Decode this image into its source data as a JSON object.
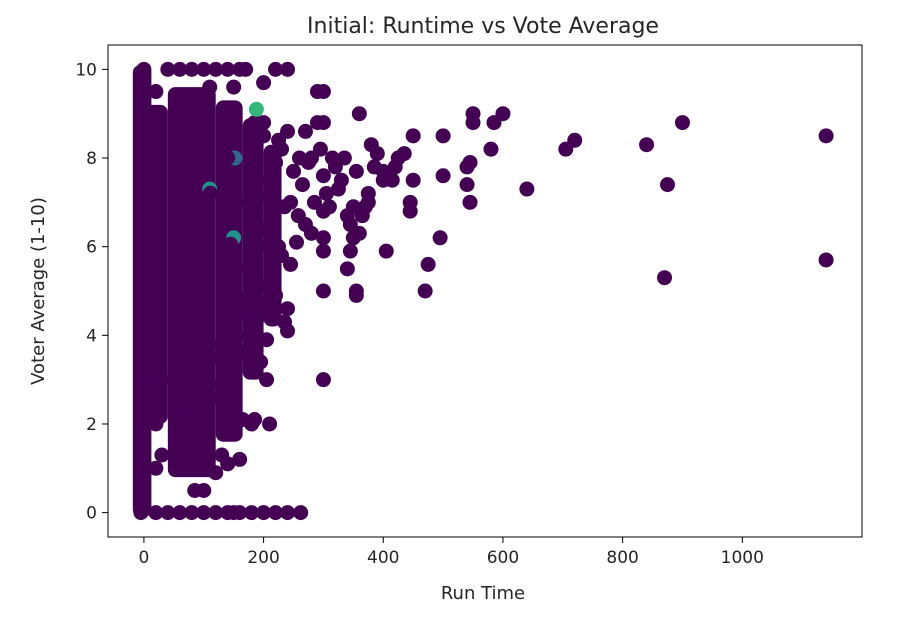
{
  "chart_data": {
    "type": "scatter",
    "title": "Initial: Runtime vs Vote Average",
    "xlabel": "Run Time",
    "ylabel": "Voter Average (1-10)",
    "xlim": [
      -60,
      1200
    ],
    "ylim": [
      -0.55,
      10.55
    ],
    "xticks": [
      0,
      200,
      400,
      600,
      800,
      1000
    ],
    "yticks": [
      0,
      2,
      4,
      6,
      8,
      10
    ],
    "xtick_labels": [
      "0",
      "200",
      "400",
      "600",
      "800",
      "1000"
    ],
    "ytick_labels": [
      "0",
      "2",
      "4",
      "6",
      "8",
      "10"
    ],
    "grid": false,
    "legend": "none",
    "colors": {
      "primary": "#440154",
      "highlight": [
        "#35b779",
        "#31688e",
        "#21918c"
      ]
    },
    "series": [
      {
        "points": [
          [
            1140,
            8.5
          ],
          [
            1140,
            5.7
          ],
          [
            900,
            8.8
          ],
          [
            875,
            7.4
          ],
          [
            870,
            5.3
          ],
          [
            840,
            8.3
          ],
          [
            720,
            8.4
          ],
          [
            705,
            8.2
          ],
          [
            640,
            7.3
          ],
          [
            600,
            9.0
          ],
          [
            585,
            8.8
          ],
          [
            580,
            8.2
          ],
          [
            550,
            9.0
          ],
          [
            550,
            8.8
          ],
          [
            545,
            7.9
          ],
          [
            540,
            7.8
          ],
          [
            540,
            7.4
          ],
          [
            545,
            7.0
          ],
          [
            500,
            8.5
          ],
          [
            500,
            7.6
          ],
          [
            495,
            6.2
          ],
          [
            475,
            5.6
          ],
          [
            470,
            5.0
          ],
          [
            450,
            8.5
          ],
          [
            450,
            7.5
          ],
          [
            445,
            7.0
          ],
          [
            445,
            6.8
          ],
          [
            435,
            8.1
          ],
          [
            425,
            8.0
          ],
          [
            420,
            7.8
          ],
          [
            415,
            7.5
          ],
          [
            405,
            5.9
          ],
          [
            400,
            7.7
          ],
          [
            400,
            7.5
          ],
          [
            390,
            8.1
          ],
          [
            385,
            7.8
          ],
          [
            380,
            8.3
          ],
          [
            375,
            7.2
          ],
          [
            375,
            7.0
          ],
          [
            370,
            6.9
          ],
          [
            365,
            6.7
          ],
          [
            360,
            9.0
          ],
          [
            360,
            6.3
          ],
          [
            355,
            7.7
          ],
          [
            355,
            5.0
          ],
          [
            355,
            4.9
          ],
          [
            350,
            6.9
          ],
          [
            350,
            6.2
          ],
          [
            345,
            6.5
          ],
          [
            345,
            5.9
          ],
          [
            340,
            6.7
          ],
          [
            340,
            5.5
          ],
          [
            335,
            8.0
          ],
          [
            330,
            7.5
          ],
          [
            325,
            7.3
          ],
          [
            320,
            7.8
          ],
          [
            315,
            8.0
          ],
          [
            310,
            6.9
          ],
          [
            305,
            7.2
          ],
          [
            300,
            9.5
          ],
          [
            300,
            8.8
          ],
          [
            300,
            7.6
          ],
          [
            300,
            6.8
          ],
          [
            300,
            6.2
          ],
          [
            300,
            5.9
          ],
          [
            300,
            5.0
          ],
          [
            300,
            3.0
          ],
          [
            295,
            8.2
          ],
          [
            290,
            9.5
          ],
          [
            290,
            8.8
          ],
          [
            285,
            7.0
          ],
          [
            280,
            8.0
          ],
          [
            280,
            6.3
          ],
          [
            275,
            7.9
          ],
          [
            270,
            8.6
          ],
          [
            270,
            6.5
          ],
          [
            265,
            7.4
          ],
          [
            262,
            0.0
          ],
          [
            260,
            8.0
          ],
          [
            258,
            6.7
          ],
          [
            255,
            6.1
          ],
          [
            250,
            7.7
          ],
          [
            245,
            7.0
          ],
          [
            245,
            5.6
          ],
          [
            240,
            8.6
          ],
          [
            240,
            10.0
          ],
          [
            240,
            4.6
          ],
          [
            240,
            4.1
          ],
          [
            235,
            6.9
          ],
          [
            230,
            8.2
          ],
          [
            225,
            6.0
          ],
          [
            220,
            10.0
          ],
          [
            220,
            7.9
          ],
          [
            215,
            5.2
          ],
          [
            210,
            2.0
          ],
          [
            205,
            3.0
          ],
          [
            200,
            8.5
          ],
          [
            200,
            6.4
          ],
          [
            195,
            3.4
          ],
          [
            190,
            4.4
          ],
          [
            185,
            2.1
          ],
          [
            180,
            2.0
          ],
          [
            175,
            7.0
          ],
          [
            165,
            2.1
          ],
          [
            160,
            1.2
          ],
          [
            150,
            0.0
          ],
          [
            140,
            1.1
          ],
          [
            130,
            1.3
          ],
          [
            120,
            0.9
          ],
          [
            100,
            0.5
          ],
          [
            85,
            0.5
          ],
          [
            30,
            1.3
          ],
          [
            -5,
            0.5
          ],
          [
            -5,
            0.0
          ],
          [
            0,
            2.0
          ],
          [
            0,
            3.0
          ],
          [
            0,
            1.0
          ],
          [
            0,
            4.0
          ],
          [
            0,
            5.0
          ],
          [
            0,
            6.0
          ],
          [
            0,
            7.0
          ],
          [
            0,
            8.0
          ],
          [
            0,
            9.0
          ],
          [
            0,
            10.0
          ],
          [
            0,
            2.6
          ],
          [
            20,
            9.5
          ],
          [
            40,
            10.0
          ],
          [
            60,
            10.0
          ],
          [
            80,
            10.0
          ],
          [
            100,
            10.0
          ],
          [
            120,
            10.0
          ],
          [
            140,
            10.0
          ],
          [
            160,
            10.0
          ],
          [
            170,
            10.0
          ],
          [
            185,
            8.8
          ],
          [
            200,
            8.8
          ],
          [
            210,
            7.1
          ],
          [
            215,
            6.9
          ],
          [
            225,
            8.4
          ],
          [
            230,
            5.8
          ],
          [
            235,
            4.3
          ],
          [
            20,
            0.0
          ],
          [
            40,
            0.0
          ],
          [
            60,
            0.0
          ],
          [
            80,
            0.0
          ],
          [
            100,
            0.0
          ],
          [
            120,
            0.0
          ],
          [
            140,
            0.0
          ],
          [
            160,
            0.0
          ],
          [
            180,
            0.0
          ],
          [
            200,
            0.0
          ],
          [
            220,
            0.0
          ],
          [
            240,
            0.0
          ],
          [
            62,
            2.5
          ],
          [
            60,
            2.0
          ],
          [
            70,
            3.2
          ],
          [
            80,
            1.5
          ],
          [
            90,
            2.3
          ],
          [
            110,
            3.8
          ],
          [
            115,
            2.6
          ],
          [
            125,
            3.5
          ],
          [
            130,
            2.9
          ],
          [
            135,
            1.8
          ],
          [
            140,
            3.4
          ],
          [
            145,
            3.1
          ],
          [
            150,
            2.5
          ],
          [
            155,
            4.0
          ],
          [
            160,
            4.5
          ],
          [
            165,
            3.6
          ],
          [
            170,
            4.8
          ],
          [
            175,
            5.5
          ],
          [
            180,
            6.2
          ],
          [
            185,
            6.8
          ],
          [
            190,
            7.5
          ],
          [
            195,
            5.1
          ],
          [
            200,
            4.7
          ],
          [
            205,
            3.9
          ],
          [
            210,
            6.0
          ],
          [
            215,
            5.3
          ],
          [
            220,
            4.9
          ],
          [
            20,
            1.0
          ],
          [
            20,
            2.0
          ],
          [
            30,
            3.0
          ],
          [
            20,
            4.0
          ],
          [
            150,
            9.6
          ],
          [
            200,
            9.7
          ],
          [
            110,
            9.6
          ]
        ]
      }
    ]
  }
}
